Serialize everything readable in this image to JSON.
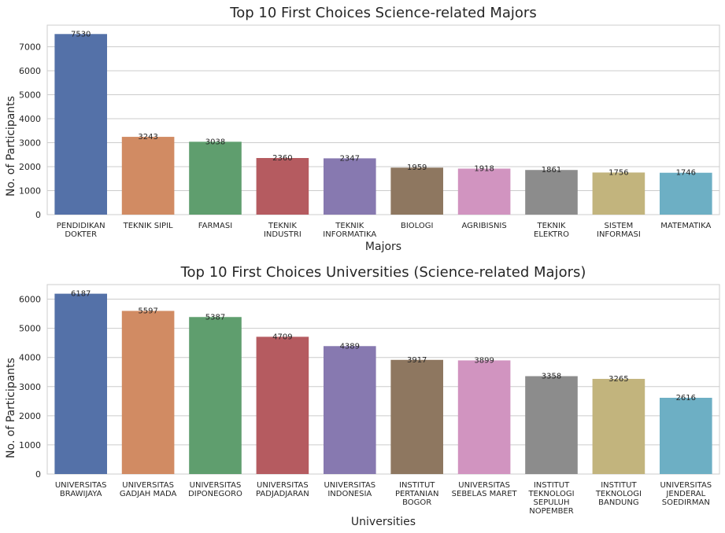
{
  "chart_data": [
    {
      "type": "bar",
      "title": "Top 10 First Choices Science-related Majors",
      "xlabel": "Majors",
      "ylabel": "No. of Participants",
      "ylim": [
        0,
        7900
      ],
      "yticks": [
        0,
        1000,
        2000,
        3000,
        4000,
        5000,
        6000,
        7000
      ],
      "grid": "horizontal",
      "legend": "none",
      "categories": [
        [
          "PENDIDIKAN",
          "DOKTER"
        ],
        [
          "TEKNIK SIPIL"
        ],
        [
          "FARMASI"
        ],
        [
          "TEKNIK",
          "INDUSTRI"
        ],
        [
          "TEKNIK",
          "INFORMATIKA"
        ],
        [
          "BIOLOGI"
        ],
        [
          "AGRIBISNIS"
        ],
        [
          "TEKNIK",
          "ELEKTRO"
        ],
        [
          "SISTEM",
          "INFORMASI"
        ],
        [
          "MATEMATIKA"
        ]
      ],
      "values": [
        7530,
        3243,
        3038,
        2360,
        2347,
        1959,
        1918,
        1861,
        1756,
        1746
      ],
      "colors": [
        "#5471a8",
        "#d18b63",
        "#5f9e6e",
        "#b55b60",
        "#8779b0",
        "#8e7760",
        "#d194c0",
        "#8c8c8c",
        "#c2b47d",
        "#6dafc4"
      ]
    },
    {
      "type": "bar",
      "title": "Top 10 First Choices Universities (Science-related Majors)",
      "xlabel": "Universities",
      "ylabel": "No. of Participants",
      "ylim": [
        0,
        6500
      ],
      "yticks": [
        0,
        1000,
        2000,
        3000,
        4000,
        5000,
        6000
      ],
      "grid": "horizontal",
      "legend": "none",
      "categories": [
        [
          "UNIVERSITAS",
          "BRAWIJAYA"
        ],
        [
          "UNIVERSITAS",
          "GADJAH MADA"
        ],
        [
          "UNIVERSITAS",
          "DIPONEGORO"
        ],
        [
          "UNIVERSITAS",
          "PADJADJARAN"
        ],
        [
          "UNIVERSITAS",
          "INDONESIA"
        ],
        [
          "INSTITUT",
          "PERTANIAN",
          "BOGOR"
        ],
        [
          "UNIVERSITAS",
          "SEBELAS MARET"
        ],
        [
          "INSTITUT",
          "TEKNOLOGI",
          "SEPULUH",
          "NOPEMBER"
        ],
        [
          "INSTITUT",
          "TEKNOLOGI",
          "BANDUNG"
        ],
        [
          "UNIVERSITAS",
          "JENDERAL",
          "SOEDIRMAN"
        ]
      ],
      "values": [
        6187,
        5597,
        5387,
        4709,
        4389,
        3917,
        3899,
        3358,
        3265,
        2616
      ],
      "colors": [
        "#5471a8",
        "#d18b63",
        "#5f9e6e",
        "#b55b60",
        "#8779b0",
        "#8e7760",
        "#d194c0",
        "#8c8c8c",
        "#c2b47d",
        "#6dafc4"
      ]
    }
  ]
}
